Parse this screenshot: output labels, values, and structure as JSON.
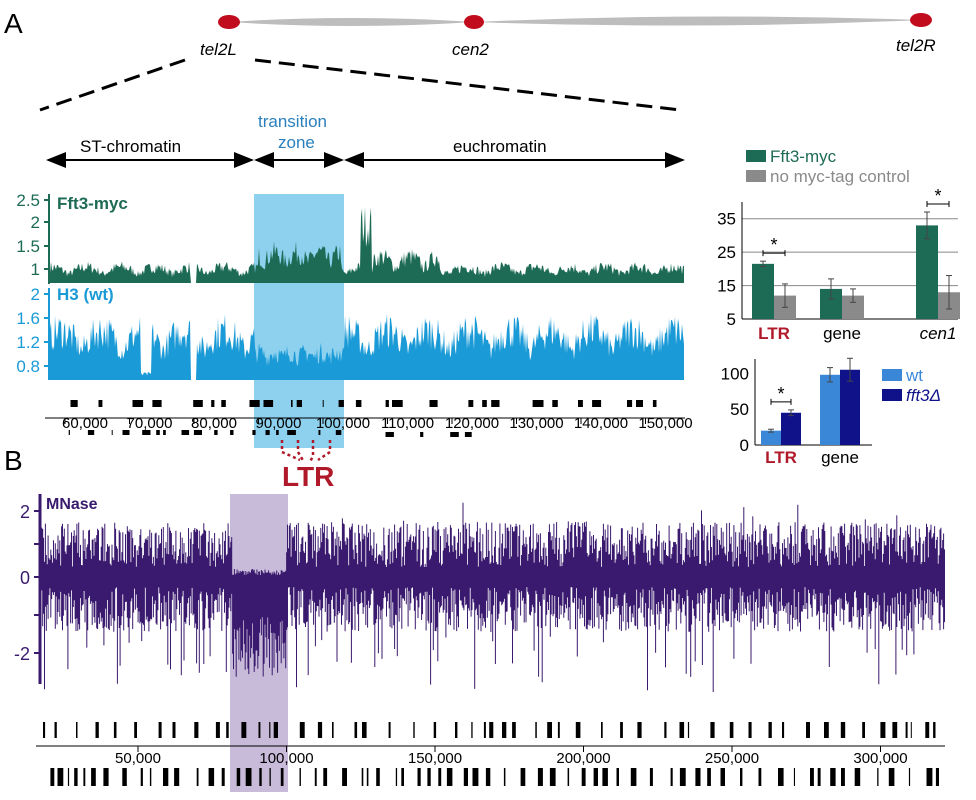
{
  "panels": {
    "a": "A",
    "b": "B"
  },
  "chromosome": {
    "tel_left": "tel2L",
    "centromere": "cen2",
    "tel_right": "tel2R"
  },
  "regions": {
    "st": "ST-chromatin",
    "transition_1": "transition",
    "transition_2": "zone",
    "euchromatin": "euchromatin"
  },
  "tracks": {
    "fft3": {
      "label": "Fft3-myc",
      "ticks": [
        "2.5",
        "2",
        "1.5",
        "1"
      ]
    },
    "h3": {
      "label": "H3 (wt)",
      "ticks": [
        "2",
        "1.6",
        "1.2",
        "0.8"
      ]
    }
  },
  "x_axis_a": [
    "60,000",
    "70,000",
    "80,000",
    "90,000",
    "100,000",
    "110,000",
    "120,000",
    "130,000",
    "140,000",
    "150,000"
  ],
  "ltr_label": "LTR",
  "mnase": {
    "label": "MNase",
    "ticks": [
      "2",
      "0",
      "-2"
    ]
  },
  "x_axis_b": [
    "50,000",
    "100,000",
    "150,000",
    "200,000",
    "250,000",
    "300,000"
  ],
  "colors": {
    "fft3": "#1d6b55",
    "h3": "#1a9ad6",
    "mnase": "#3a1a6e",
    "ltr": "#b0192a",
    "transition_a": "#8ed1ef",
    "transition_b": "#c8bad9",
    "chip_series": "#1d6b55",
    "control_series": "#8a8a8a",
    "wt_series": "#3a87d8",
    "mutant_series": "#10128a"
  },
  "chart_data": [
    {
      "type": "bar",
      "categories": [
        "LTR",
        "gene",
        "cen1"
      ],
      "series": [
        {
          "name": "Fft3-myc",
          "values": [
            21.5,
            14,
            33
          ]
        },
        {
          "name": "no myc-tag control",
          "values": [
            12,
            12,
            13
          ]
        }
      ],
      "error_bars": [
        [
          0.8,
          3,
          4
        ],
        [
          3.5,
          2,
          5
        ]
      ],
      "significance": [
        "*",
        "",
        "*"
      ],
      "yticks": [
        "35",
        "25",
        "15",
        "5"
      ],
      "ylim": [
        5,
        40
      ]
    },
    {
      "type": "bar",
      "categories": [
        "LTR",
        "gene"
      ],
      "series": [
        {
          "name": "wt",
          "values": [
            20,
            98
          ]
        },
        {
          "name": "fft3Δ",
          "values": [
            45,
            105
          ]
        }
      ],
      "error_bars": [
        [
          2,
          10
        ],
        [
          4,
          16
        ]
      ],
      "significance": [
        "*",
        ""
      ],
      "yticks": [
        "100",
        "50",
        "0"
      ],
      "ylim": [
        0,
        120
      ]
    }
  ]
}
